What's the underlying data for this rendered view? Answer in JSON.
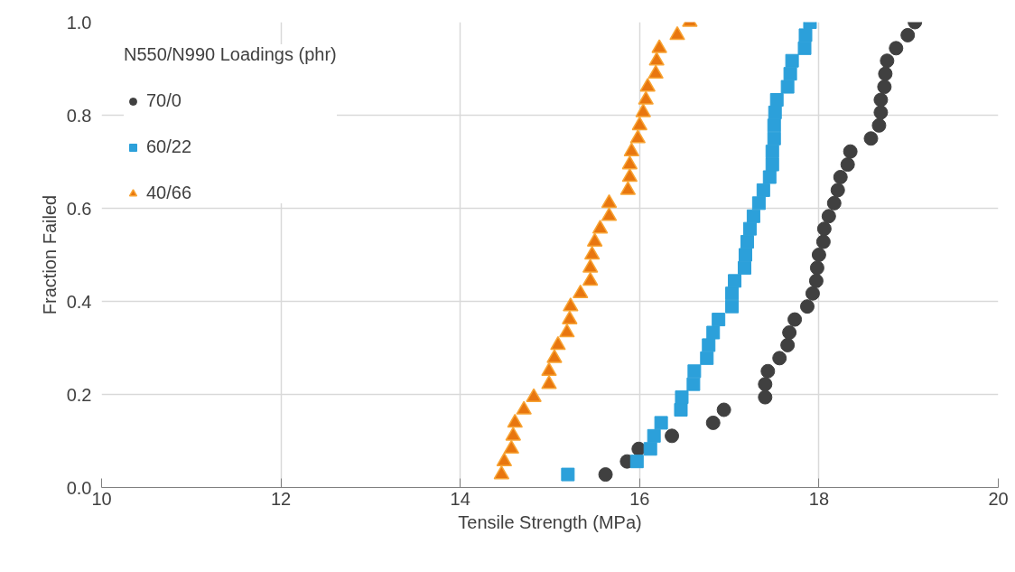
{
  "chart_data": {
    "type": "scatter",
    "xlabel": "Tensile Strength (MPa)",
    "ylabel": "Fraction Failed",
    "legend_title": "N550/N990 Loadings (phr)",
    "legend": "top left",
    "grid": true,
    "xlim": [
      10,
      20
    ],
    "xticks": [
      10,
      12,
      14,
      16,
      18,
      20
    ],
    "ylim": [
      0,
      1
    ],
    "yticks": [
      {
        "value": 0,
        "label": "0.0"
      },
      {
        "value": 0.2,
        "label": "0.2"
      },
      {
        "value": 0.4,
        "label": "0.4"
      },
      {
        "value": 0.6,
        "label": "0.6"
      },
      {
        "value": 0.8,
        "label": "0.8"
      },
      {
        "value": 1,
        "label": "1.0"
      }
    ],
    "series": [
      {
        "name": "70/0",
        "color": "#404040",
        "marker": "circle",
        "x": [
          15.62,
          15.86,
          15.99,
          16.36,
          16.82,
          16.94,
          17.4,
          17.4,
          17.43,
          17.56,
          17.65,
          17.67,
          17.73,
          17.87,
          17.93,
          17.97,
          17.98,
          18.0,
          18.05,
          18.06,
          18.11,
          18.17,
          18.21,
          18.24,
          18.32,
          18.35,
          18.58,
          18.67,
          18.69,
          18.69,
          18.73,
          18.74,
          18.76,
          18.86,
          18.99,
          19.07
        ],
        "values": [
          0.028,
          0.056,
          0.083,
          0.111,
          0.139,
          0.167,
          0.194,
          0.222,
          0.25,
          0.278,
          0.306,
          0.333,
          0.361,
          0.389,
          0.417,
          0.444,
          0.472,
          0.5,
          0.528,
          0.556,
          0.583,
          0.611,
          0.639,
          0.667,
          0.694,
          0.722,
          0.75,
          0.778,
          0.806,
          0.833,
          0.861,
          0.889,
          0.917,
          0.944,
          0.972,
          1.0
        ]
      },
      {
        "name": "60/22",
        "color": "#2ca0da",
        "marker": "square",
        "x": [
          15.2,
          15.97,
          16.12,
          16.16,
          16.24,
          16.46,
          16.47,
          16.6,
          16.61,
          16.75,
          16.77,
          16.82,
          16.88,
          17.03,
          17.03,
          17.06,
          17.17,
          17.18,
          17.2,
          17.23,
          17.27,
          17.33,
          17.38,
          17.45,
          17.48,
          17.48,
          17.5,
          17.5,
          17.51,
          17.53,
          17.65,
          17.68,
          17.7,
          17.84,
          17.85,
          17.9
        ],
        "values": [
          0.028,
          0.056,
          0.083,
          0.111,
          0.139,
          0.167,
          0.194,
          0.222,
          0.25,
          0.278,
          0.306,
          0.333,
          0.361,
          0.389,
          0.417,
          0.444,
          0.472,
          0.5,
          0.528,
          0.556,
          0.583,
          0.611,
          0.639,
          0.667,
          0.694,
          0.722,
          0.75,
          0.778,
          0.806,
          0.833,
          0.861,
          0.889,
          0.917,
          0.944,
          0.972,
          1.0
        ]
      },
      {
        "name": "40/66",
        "color": "#e8760f",
        "marker": "triangle",
        "x": [
          14.46,
          14.49,
          14.57,
          14.59,
          14.61,
          14.71,
          14.82,
          14.99,
          14.99,
          15.05,
          15.09,
          15.19,
          15.22,
          15.23,
          15.34,
          15.45,
          15.45,
          15.47,
          15.5,
          15.56,
          15.66,
          15.66,
          15.87,
          15.89,
          15.89,
          15.91,
          15.98,
          16.0,
          16.04,
          16.07,
          16.09,
          16.18,
          16.19,
          16.22,
          16.42,
          16.56
        ],
        "values": [
          0.028,
          0.056,
          0.083,
          0.111,
          0.139,
          0.167,
          0.194,
          0.222,
          0.25,
          0.278,
          0.306,
          0.333,
          0.361,
          0.389,
          0.417,
          0.444,
          0.472,
          0.5,
          0.528,
          0.556,
          0.583,
          0.611,
          0.639,
          0.667,
          0.694,
          0.722,
          0.75,
          0.778,
          0.806,
          0.833,
          0.861,
          0.889,
          0.917,
          0.944,
          0.972,
          1.0
        ]
      }
    ]
  }
}
